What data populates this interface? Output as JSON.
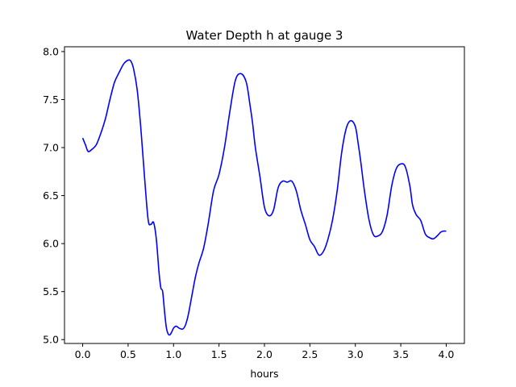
{
  "chart_data": {
    "type": "line",
    "title": "Water Depth h at gauge 3",
    "xlabel": "hours",
    "ylabel": "",
    "xlim": [
      -0.2,
      4.2
    ],
    "ylim": [
      4.96,
      8.05
    ],
    "xticks": [
      0.0,
      0.5,
      1.0,
      1.5,
      2.0,
      2.5,
      3.0,
      3.5,
      4.0
    ],
    "xtick_labels": [
      "0.0",
      "0.5",
      "1.0",
      "1.5",
      "2.0",
      "2.5",
      "3.0",
      "3.5",
      "4.0"
    ],
    "yticks": [
      5.0,
      5.5,
      6.0,
      6.5,
      7.0,
      7.5,
      8.0
    ],
    "ytick_labels": [
      "5.0",
      "5.5",
      "6.0",
      "6.5",
      "7.0",
      "7.5",
      "8.0"
    ],
    "grid": false,
    "series": [
      {
        "color": "#0000ff",
        "x": [
          0.0,
          0.03,
          0.06,
          0.1,
          0.15,
          0.2,
          0.25,
          0.3,
          0.35,
          0.4,
          0.45,
          0.5,
          0.53,
          0.56,
          0.6,
          0.64,
          0.68,
          0.72,
          0.75,
          0.78,
          0.81,
          0.84,
          0.86,
          0.88,
          0.9,
          0.92,
          0.94,
          0.96,
          0.98,
          1.0,
          1.03,
          1.06,
          1.1,
          1.13,
          1.16,
          1.2,
          1.24,
          1.28,
          1.33,
          1.38,
          1.44,
          1.5,
          1.56,
          1.62,
          1.68,
          1.74,
          1.8,
          1.84,
          1.87,
          1.9,
          1.95,
          2.0,
          2.05,
          2.1,
          2.15,
          2.2,
          2.25,
          2.3,
          2.35,
          2.4,
          2.45,
          2.5,
          2.55,
          2.6,
          2.65,
          2.7,
          2.75,
          2.8,
          2.85,
          2.9,
          2.95,
          3.0,
          3.03,
          3.06,
          3.1,
          3.15,
          3.2,
          3.25,
          3.3,
          3.35,
          3.4,
          3.45,
          3.5,
          3.55,
          3.6,
          3.63,
          3.67,
          3.72,
          3.77,
          3.82,
          3.86,
          3.9,
          3.94,
          3.97,
          4.0
        ],
        "y": [
          7.1,
          7.03,
          6.96,
          6.98,
          7.03,
          7.15,
          7.3,
          7.5,
          7.68,
          7.78,
          7.87,
          7.91,
          7.9,
          7.82,
          7.6,
          7.2,
          6.7,
          6.25,
          6.2,
          6.22,
          6.05,
          5.7,
          5.54,
          5.5,
          5.3,
          5.13,
          5.06,
          5.05,
          5.08,
          5.12,
          5.14,
          5.12,
          5.11,
          5.15,
          5.25,
          5.45,
          5.65,
          5.8,
          5.95,
          6.2,
          6.55,
          6.72,
          7.0,
          7.38,
          7.7,
          7.77,
          7.68,
          7.45,
          7.25,
          7.0,
          6.7,
          6.38,
          6.29,
          6.35,
          6.58,
          6.65,
          6.64,
          6.65,
          6.55,
          6.35,
          6.2,
          6.04,
          5.97,
          5.88,
          5.92,
          6.05,
          6.25,
          6.55,
          6.95,
          7.2,
          7.28,
          7.22,
          7.05,
          6.85,
          6.55,
          6.25,
          6.09,
          6.08,
          6.13,
          6.3,
          6.6,
          6.78,
          6.83,
          6.8,
          6.6,
          6.4,
          6.3,
          6.24,
          6.1,
          6.06,
          6.05,
          6.08,
          6.12,
          6.13,
          6.13
        ]
      }
    ]
  }
}
